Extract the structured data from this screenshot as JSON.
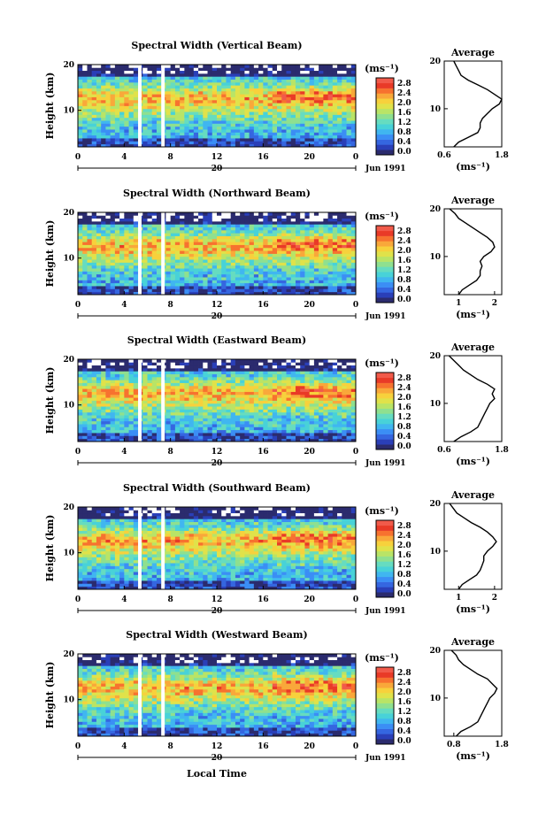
{
  "colors": {
    "scale": [
      "#2b2b6e",
      "#2a3fb8",
      "#3566e0",
      "#3b8ef5",
      "#40b6f0",
      "#48d2d8",
      "#66dcc0",
      "#8fe08f",
      "#b9e466",
      "#e0e24a",
      "#f7d13c",
      "#f9a83a",
      "#f7722f",
      "#e93a27",
      "#f15a4a"
    ],
    "profile_line": "#000000",
    "gap": "#ffffff"
  },
  "shared": {
    "colorbar_unit": "(ms⁻¹)",
    "colorbar_ticks": [
      "2.8",
      "2.4",
      "2.0",
      "1.6",
      "1.2",
      "0.8",
      "0.4",
      "0.0"
    ],
    "colorbar_range": [
      0.0,
      2.8
    ],
    "height_axis_label": "Height (km)",
    "height_ticks": [
      "20",
      "10"
    ],
    "height_range_km": [
      2,
      20
    ],
    "time_ticks": [
      "0",
      "4",
      "8",
      "12",
      "16",
      "20",
      "0"
    ],
    "time_range_h": [
      0,
      24
    ],
    "date_tick": "20",
    "date_label": "Jun 1991",
    "average_title": "Average",
    "average_unit": "(ms⁻¹)",
    "average_height_ticks": [
      "20",
      "10"
    ],
    "data_gaps_local_time_h": [
      [
        5.2,
        5.5
      ],
      [
        7.2,
        7.5
      ]
    ],
    "xlabel": "Local Time"
  },
  "chart_data": [
    {
      "type": "heatmap",
      "title": "Spectral Width (Vertical Beam)",
      "xlabel": "",
      "ylabel": "Height (km)",
      "xlim": [
        0,
        24
      ],
      "ylim": [
        2,
        20
      ],
      "profile": {
        "title": "Average",
        "x_ticks": [
          "0.6",
          "1.8"
        ],
        "xlim": [
          0.6,
          1.8
        ],
        "height_km": [
          2,
          3,
          4,
          5,
          6,
          7,
          8,
          9,
          10,
          11,
          12,
          13,
          14,
          15,
          16,
          17,
          18,
          19,
          20
        ],
        "width_ms": [
          0.8,
          0.9,
          1.1,
          1.3,
          1.35,
          1.35,
          1.4,
          1.5,
          1.6,
          1.75,
          1.8,
          1.65,
          1.5,
          1.3,
          1.1,
          0.95,
          0.9,
          0.85,
          0.8
        ]
      }
    },
    {
      "type": "heatmap",
      "title": "Spectral Width (Northward Beam)",
      "xlabel": "",
      "ylabel": "Height (km)",
      "xlim": [
        0,
        24
      ],
      "ylim": [
        2,
        20
      ],
      "profile": {
        "title": "Average",
        "x_ticks": [
          "1",
          "2"
        ],
        "xlim": [
          0.6,
          2.2
        ],
        "height_km": [
          2,
          3,
          4,
          5,
          6,
          7,
          8,
          9,
          10,
          11,
          12,
          13,
          14,
          15,
          16,
          17,
          18,
          19,
          20
        ],
        "width_ms": [
          1.0,
          1.1,
          1.3,
          1.5,
          1.6,
          1.6,
          1.65,
          1.6,
          1.7,
          1.9,
          2.0,
          1.95,
          1.8,
          1.6,
          1.4,
          1.2,
          1.0,
          0.9,
          0.75
        ]
      }
    },
    {
      "type": "heatmap",
      "title": "Spectral Width (Eastward Beam)",
      "xlabel": "",
      "ylabel": "Height (km)",
      "xlim": [
        0,
        24
      ],
      "ylim": [
        2,
        20
      ],
      "profile": {
        "title": "Average",
        "x_ticks": [
          "0.6",
          "1.8"
        ],
        "xlim": [
          0.6,
          1.8
        ],
        "height_km": [
          2,
          3,
          4,
          5,
          6,
          7,
          8,
          9,
          10,
          11,
          12,
          13,
          14,
          15,
          16,
          17,
          18,
          19,
          20
        ],
        "width_ms": [
          0.8,
          0.95,
          1.15,
          1.3,
          1.35,
          1.4,
          1.45,
          1.5,
          1.55,
          1.65,
          1.6,
          1.65,
          1.5,
          1.3,
          1.15,
          1.0,
          0.9,
          0.8,
          0.7
        ]
      }
    },
    {
      "type": "heatmap",
      "title": "Spectral Width (Southward Beam)",
      "xlabel": "",
      "ylabel": "Height (km)",
      "xlim": [
        0,
        24
      ],
      "ylim": [
        2,
        20
      ],
      "profile": {
        "title": "Average",
        "x_ticks": [
          "1",
          "2"
        ],
        "xlim": [
          0.6,
          2.2
        ],
        "height_km": [
          2,
          3,
          4,
          5,
          6,
          7,
          8,
          9,
          10,
          11,
          12,
          13,
          14,
          15,
          16,
          17,
          18,
          19,
          20
        ],
        "width_ms": [
          1.0,
          1.1,
          1.3,
          1.5,
          1.6,
          1.65,
          1.7,
          1.7,
          1.8,
          1.95,
          2.05,
          1.95,
          1.8,
          1.6,
          1.35,
          1.15,
          0.95,
          0.85,
          0.75
        ]
      }
    },
    {
      "type": "heatmap",
      "title": "Spectral Width (Westward Beam)",
      "xlabel": "Local Time",
      "ylabel": "Height (km)",
      "xlim": [
        0,
        24
      ],
      "ylim": [
        2,
        20
      ],
      "profile": {
        "title": "Average",
        "x_ticks": [
          "0.8",
          "1.8"
        ],
        "xlim": [
          0.6,
          1.8
        ],
        "height_km": [
          2,
          3,
          4,
          5,
          6,
          7,
          8,
          9,
          10,
          11,
          12,
          13,
          14,
          15,
          16,
          17,
          18,
          19,
          20
        ],
        "width_ms": [
          0.85,
          0.95,
          1.15,
          1.3,
          1.35,
          1.4,
          1.45,
          1.5,
          1.55,
          1.65,
          1.7,
          1.6,
          1.5,
          1.3,
          1.15,
          1.0,
          0.9,
          0.85,
          0.75
        ]
      }
    }
  ]
}
